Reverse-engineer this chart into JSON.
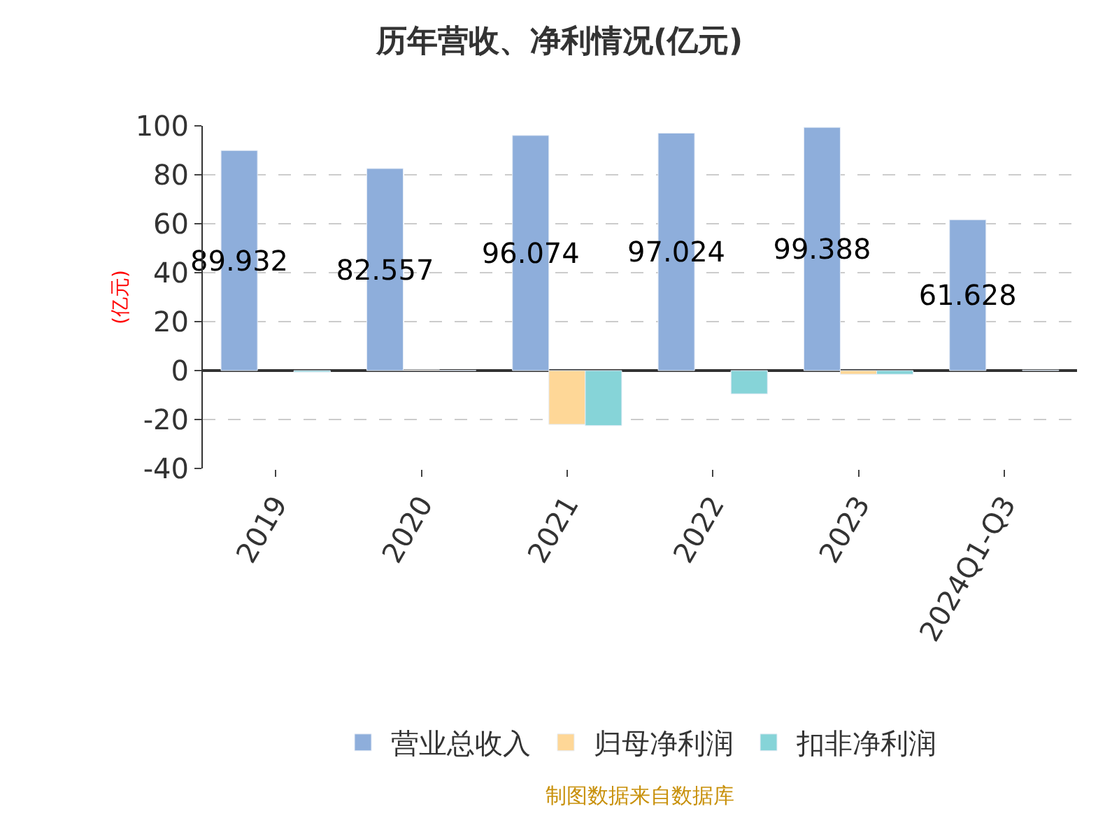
{
  "chart_data": {
    "type": "bar",
    "title": "历年营收、净利情况(亿元)",
    "ylabel": "(亿元)",
    "categories": [
      "2019",
      "2020",
      "2021",
      "2022",
      "2023",
      "2024Q1-Q3"
    ],
    "series": [
      {
        "name": "营业总收入",
        "color": "#8eaedb",
        "values": [
          89.932,
          82.557,
          96.074,
          97.024,
          99.388,
          61.628
        ],
        "value_labels": [
          "89.932",
          "82.557",
          "96.074",
          "97.024",
          "99.388",
          "61.628"
        ]
      },
      {
        "name": "归母净利润",
        "color": "#fed797",
        "values": [
          null,
          0.3,
          -22,
          null,
          -1.5,
          null
        ]
      },
      {
        "name": "扣非净利润",
        "color": "#86d4d8",
        "values": [
          -0.6,
          0.1,
          -22.5,
          -9.5,
          -1.5,
          0.2
        ]
      }
    ],
    "ylim": [
      -40,
      100
    ],
    "yticks": [
      -40,
      -20,
      0,
      20,
      40,
      60,
      80,
      100
    ],
    "grid": "y",
    "legend": "bottom",
    "annotations": [
      "制图数据来自数据库"
    ]
  }
}
